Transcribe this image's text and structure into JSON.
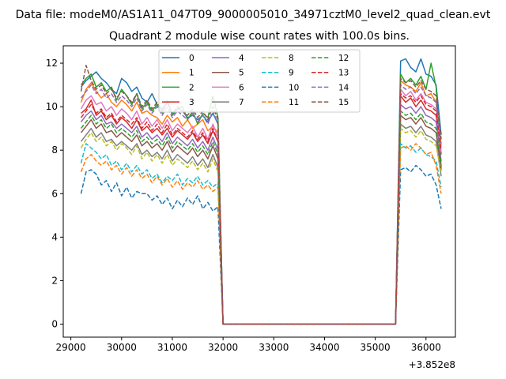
{
  "chart_data": {
    "type": "line",
    "suptitle": "Data file: modeM0/AS1A11_047T09_9000005010_34971cztM0_level2_quad_clean.evt",
    "title": "Quadrant 2 module wise count rates with 100.0s bins.",
    "xlabel": "",
    "ylabel": "",
    "x_offset_label": "+3.852e8",
    "x_offset": 385200000,
    "xlim": [
      28850,
      36580
    ],
    "ylim": [
      -0.6,
      12.8
    ],
    "xticks": [
      29000,
      30000,
      31000,
      32000,
      33000,
      34000,
      35000,
      36000
    ],
    "yticks": [
      0,
      2,
      4,
      6,
      8,
      10,
      12
    ],
    "legend_position": "top-center",
    "legend_columns": 4,
    "x_segment_1": [
      29200,
      29300,
      29400,
      29500,
      29600,
      29700,
      29800,
      29900,
      30000,
      30100,
      30200,
      30300,
      30400,
      30500,
      30600,
      30700,
      30800,
      30900,
      31000,
      31100,
      31200,
      31300,
      31400,
      31500,
      31600,
      31700,
      31800,
      31900
    ],
    "x_gap": [
      32000,
      32100,
      32200,
      35200,
      35300,
      35400
    ],
    "x_segment_2": [
      35500,
      35600,
      35700,
      35800,
      35900,
      36000,
      36100,
      36200,
      36300
    ],
    "series": [
      {
        "name": "0",
        "color": "#1f77b4",
        "dash": "solid",
        "seg1": [
          10.9,
          11.2,
          11.4,
          11.6,
          11.3,
          11.1,
          10.8,
          10.6,
          11.3,
          11.1,
          10.7,
          10.9,
          10.4,
          10.2,
          10.6,
          10.1,
          9.9,
          10.2,
          9.7,
          9.9,
          9.8,
          9.5,
          9.6,
          9.4,
          9.6,
          9.3,
          9.7,
          9.2
        ],
        "seg2": [
          12.1,
          12.2,
          11.8,
          11.6,
          12.2,
          11.5,
          11.4,
          11.0,
          8.7
        ]
      },
      {
        "name": "1",
        "color": "#ff7f0e",
        "dash": "solid",
        "seg1": [
          10.2,
          10.8,
          11.1,
          10.7,
          10.4,
          10.6,
          10.2,
          10.0,
          10.3,
          10.1,
          9.8,
          10.2,
          9.7,
          9.8,
          9.6,
          9.5,
          9.2,
          9.6,
          9.3,
          9.5,
          9.1,
          9.4,
          9.0,
          9.2,
          9.4,
          8.9,
          9.1,
          8.8
        ],
        "seg2": [
          11.2,
          11.0,
          10.9,
          10.7,
          11.1,
          10.5,
          10.6,
          10.2,
          8.2
        ]
      },
      {
        "name": "2",
        "color": "#2ca02c",
        "dash": "solid",
        "seg1": [
          11.0,
          11.3,
          11.5,
          10.9,
          11.1,
          10.7,
          10.9,
          10.3,
          10.8,
          10.5,
          10.1,
          10.6,
          9.9,
          10.2,
          9.8,
          10.1,
          9.7,
          10.3,
          9.6,
          9.9,
          10.0,
          9.4,
          9.8,
          9.2,
          9.7,
          9.5,
          10.5,
          9.5
        ],
        "seg2": [
          11.5,
          11.1,
          11.3,
          11.0,
          11.4,
          10.8,
          12.0,
          10.9,
          7.2
        ]
      },
      {
        "name": "3",
        "color": "#d62728",
        "dash": "solid",
        "seg1": [
          9.7,
          9.9,
          10.3,
          9.6,
          9.8,
          9.4,
          9.6,
          9.2,
          9.5,
          9.3,
          9.0,
          9.4,
          8.9,
          9.1,
          8.8,
          9.0,
          8.7,
          9.0,
          8.6,
          8.9,
          8.7,
          8.5,
          8.8,
          8.4,
          8.7,
          8.3,
          8.9,
          8.4
        ],
        "seg2": [
          10.5,
          10.2,
          10.4,
          10.0,
          10.3,
          9.9,
          9.8,
          9.6,
          7.8
        ]
      },
      {
        "name": "4",
        "color": "#9467bd",
        "dash": "solid",
        "seg1": [
          9.3,
          9.6,
          9.8,
          9.4,
          9.6,
          9.2,
          9.3,
          9.0,
          9.2,
          9.0,
          8.8,
          9.1,
          8.6,
          8.8,
          8.5,
          8.7,
          8.4,
          8.8,
          8.3,
          8.6,
          8.4,
          8.2,
          8.5,
          8.1,
          8.4,
          8.0,
          8.6,
          8.0
        ],
        "seg2": [
          10.1,
          9.9,
          10.0,
          9.7,
          10.0,
          9.6,
          9.5,
          9.3,
          7.5
        ]
      },
      {
        "name": "5",
        "color": "#8c564b",
        "dash": "solid",
        "seg1": [
          8.8,
          9.1,
          9.4,
          9.0,
          9.2,
          8.8,
          8.9,
          8.6,
          8.8,
          8.6,
          8.4,
          8.7,
          8.2,
          8.4,
          8.1,
          8.3,
          8.0,
          8.4,
          7.9,
          8.2,
          8.0,
          7.8,
          8.1,
          7.7,
          8.0,
          7.6,
          8.2,
          7.6
        ],
        "seg2": [
          9.6,
          9.4,
          9.5,
          9.2,
          9.5,
          9.1,
          9.0,
          8.8,
          7.1
        ]
      },
      {
        "name": "6",
        "color": "#e377c2",
        "dash": "solid",
        "seg1": [
          9.9,
          10.3,
          10.5,
          10.1,
          10.2,
          9.8,
          10.0,
          9.6,
          9.9,
          9.7,
          9.4,
          9.8,
          9.2,
          9.5,
          9.1,
          9.4,
          9.0,
          9.4,
          8.9,
          9.2,
          9.0,
          8.8,
          9.1,
          8.6,
          9.0,
          8.5,
          9.2,
          8.6
        ],
        "seg2": [
          10.8,
          10.5,
          10.7,
          10.3,
          10.6,
          10.2,
          10.1,
          9.9,
          7.9
        ]
      },
      {
        "name": "7",
        "color": "#7f7f7f",
        "dash": "solid",
        "seg1": [
          8.4,
          8.7,
          9.0,
          8.6,
          8.8,
          8.4,
          8.5,
          8.2,
          8.4,
          8.2,
          8.0,
          8.3,
          7.8,
          8.0,
          7.7,
          7.9,
          7.6,
          8.0,
          7.5,
          7.8,
          7.6,
          7.4,
          7.7,
          7.3,
          7.6,
          7.2,
          7.8,
          7.2
        ],
        "seg2": [
          9.2,
          9.0,
          9.1,
          8.8,
          9.1,
          8.7,
          8.6,
          8.4,
          6.8
        ]
      },
      {
        "name": "8",
        "color": "#bcbd22",
        "dash": "dashed",
        "seg1": [
          8.1,
          8.5,
          8.8,
          8.4,
          8.6,
          8.2,
          8.4,
          8.0,
          8.3,
          8.1,
          7.8,
          8.2,
          7.6,
          7.9,
          7.5,
          7.8,
          7.4,
          7.8,
          7.3,
          7.6,
          7.4,
          7.2,
          7.5,
          7.1,
          7.4,
          7.0,
          7.6,
          7.0
        ],
        "seg2": [
          9.0,
          8.8,
          8.9,
          8.6,
          8.9,
          8.5,
          8.4,
          8.2,
          7.0
        ]
      },
      {
        "name": "9",
        "color": "#17becf",
        "dash": "dashed",
        "seg1": [
          7.4,
          8.3,
          8.1,
          7.9,
          7.6,
          7.8,
          7.3,
          7.5,
          7.1,
          7.4,
          7.0,
          7.3,
          6.9,
          7.1,
          6.7,
          6.9,
          6.5,
          6.8,
          6.6,
          6.9,
          6.4,
          6.7,
          6.5,
          6.8,
          6.4,
          6.6,
          6.3,
          6.5
        ],
        "seg2": [
          8.3,
          8.1,
          8.2,
          7.9,
          8.1,
          7.8,
          7.7,
          7.5,
          6.3
        ]
      },
      {
        "name": "10",
        "color": "#1f77b4",
        "dash": "dashed",
        "seg1": [
          6.0,
          7.0,
          7.1,
          6.9,
          6.4,
          6.6,
          6.1,
          6.5,
          5.9,
          6.3,
          5.8,
          6.1,
          6.0,
          6.0,
          5.7,
          5.9,
          5.5,
          5.8,
          5.3,
          5.7,
          5.4,
          5.8,
          5.5,
          5.9,
          5.3,
          5.6,
          5.2,
          5.4
        ],
        "seg2": [
          7.1,
          7.2,
          7.0,
          7.3,
          7.1,
          6.8,
          6.9,
          6.4,
          5.3
        ]
      },
      {
        "name": "11",
        "color": "#ff7f0e",
        "dash": "dashed",
        "seg1": [
          7.0,
          7.6,
          7.8,
          7.5,
          7.3,
          7.5,
          7.1,
          7.3,
          6.9,
          7.2,
          6.8,
          7.1,
          6.7,
          6.9,
          6.5,
          6.8,
          6.4,
          6.7,
          6.3,
          6.6,
          6.2,
          6.5,
          6.3,
          6.6,
          6.2,
          6.4,
          6.1,
          6.3
        ],
        "seg2": [
          8.1,
          8.2,
          8.0,
          8.3,
          8.1,
          7.8,
          7.9,
          7.3,
          6.0
        ]
      },
      {
        "name": "12",
        "color": "#2ca02c",
        "dash": "dashed",
        "seg1": [
          9.0,
          9.3,
          9.6,
          9.2,
          9.4,
          9.0,
          9.2,
          8.8,
          9.0,
          8.8,
          8.6,
          8.9,
          8.4,
          8.6,
          8.3,
          8.5,
          8.2,
          8.6,
          8.1,
          8.4,
          8.2,
          8.0,
          8.3,
          7.9,
          8.2,
          7.8,
          8.4,
          7.8
        ],
        "seg2": [
          9.8,
          9.6,
          9.7,
          9.4,
          9.7,
          9.3,
          9.2,
          9.0,
          7.4
        ]
      },
      {
        "name": "13",
        "color": "#d62728",
        "dash": "dashed",
        "seg1": [
          9.5,
          9.8,
          10.1,
          9.7,
          9.9,
          9.5,
          9.7,
          9.3,
          9.6,
          9.4,
          9.2,
          9.5,
          9.0,
          9.3,
          8.9,
          9.2,
          8.8,
          9.2,
          8.7,
          9.0,
          8.8,
          8.6,
          8.9,
          8.5,
          8.8,
          8.4,
          9.0,
          8.4
        ],
        "seg2": [
          10.6,
          10.4,
          10.5,
          10.2,
          10.5,
          10.1,
          10.0,
          9.8,
          8.0
        ]
      },
      {
        "name": "14",
        "color": "#9467bd",
        "dash": "dashed",
        "seg1": [
          10.4,
          10.7,
          11.0,
          10.6,
          10.8,
          10.4,
          10.6,
          10.2,
          10.5,
          10.3,
          10.0,
          10.4,
          9.8,
          10.1,
          9.7,
          10.0,
          9.6,
          10.0,
          9.5,
          9.8,
          9.6,
          9.4,
          9.7,
          9.3,
          9.6,
          9.2,
          9.8,
          9.2
        ],
        "seg2": [
          11.0,
          10.8,
          10.9,
          10.6,
          10.9,
          10.5,
          10.4,
          10.2,
          8.3
        ]
      },
      {
        "name": "15",
        "color": "#8c564b",
        "dash": "dashed",
        "seg1": [
          10.7,
          11.9,
          11.2,
          10.8,
          11.0,
          10.6,
          10.8,
          10.4,
          10.7,
          10.5,
          10.2,
          10.6,
          10.0,
          10.3,
          9.9,
          10.2,
          9.8,
          10.2,
          9.7,
          10.0,
          9.8,
          9.6,
          9.9,
          9.5,
          9.8,
          9.4,
          10.0,
          9.4
        ],
        "seg2": [
          11.3,
          11.1,
          11.2,
          10.9,
          11.2,
          10.8,
          10.7,
          10.5,
          8.5
        ]
      }
    ]
  }
}
